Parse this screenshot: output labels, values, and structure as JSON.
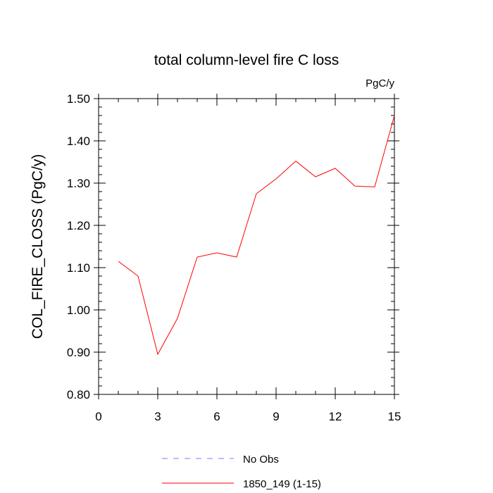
{
  "chart_data": {
    "type": "line",
    "title": "total column-level fire C loss",
    "units": "PgC/y",
    "ylabel": "COL_FIRE_CLOSS  (PgC/y)",
    "xlabel": "",
    "xlim": [
      0,
      15
    ],
    "ylim": [
      0.8,
      1.5
    ],
    "x_major_ticks": [
      0,
      3,
      6,
      9,
      12,
      15
    ],
    "x_tick_labels": [
      "0",
      "3",
      "6",
      "9",
      "12",
      "15"
    ],
    "y_major_ticks": [
      0.8,
      0.9,
      1.0,
      1.1,
      1.2,
      1.3,
      1.4,
      1.5
    ],
    "y_tick_labels": [
      "0.80",
      "0.90",
      "1.00",
      "1.10",
      "1.20",
      "1.30",
      "1.40",
      "1.50"
    ],
    "grid": false,
    "legend_position": "bottom",
    "series": [
      {
        "name": "1850_149 (1-15)",
        "color": "#ff0000",
        "style": "solid",
        "x": [
          1,
          2,
          3,
          4,
          5,
          6,
          7,
          8,
          9,
          10,
          11,
          12,
          13,
          14,
          15
        ],
        "y": [
          1.115,
          1.08,
          0.895,
          0.98,
          1.125,
          1.135,
          1.125,
          1.275,
          1.31,
          1.352,
          1.315,
          1.335,
          1.293,
          1.291,
          1.46
        ]
      }
    ],
    "legend": [
      {
        "name": "No Obs",
        "color": "#7b7bff",
        "style": "dashed"
      },
      {
        "name": "1850_149 (1-15)",
        "color": "#ff0000",
        "style": "solid"
      }
    ]
  }
}
